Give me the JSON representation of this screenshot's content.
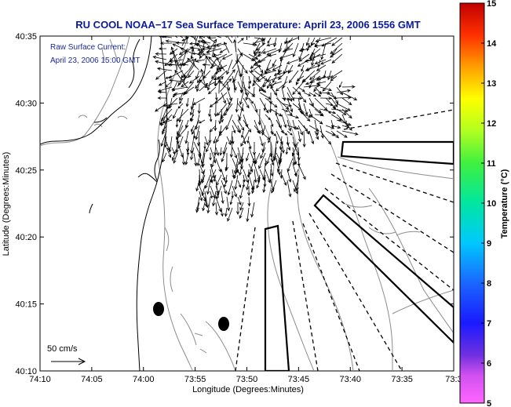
{
  "title": "RU COOL  NOAA−17  Sea Surface Temperature:  April 23, 2006 1556 GMT",
  "annotation": {
    "line1": "Raw Surface Current:",
    "line2": "April 23, 2006 15:00 GMT"
  },
  "scale_label": "50 cm/s",
  "axes": {
    "xlabel": "Longitude (Degrees:Minutes)",
    "ylabel": "Latitude (Degrees:Minutes)",
    "x_ticks": [
      "74:10",
      "74:05",
      "74:00",
      "73:55",
      "73:50",
      "73:45",
      "73:40",
      "73:35",
      "73:3"
    ],
    "y_ticks": [
      "40:35",
      "40:30",
      "40:25",
      "40:20",
      "40:15",
      "40:10"
    ]
  },
  "colorbar": {
    "label": "Temperature (°C)",
    "ticks": [
      "15",
      "14",
      "13",
      "12",
      "11",
      "10",
      "9",
      "8",
      "7",
      "6",
      "5"
    ],
    "min": 5,
    "max": 15
  },
  "map": {
    "current_vectors": "dense field of surface current arrows near harbor mouth"
  }
}
